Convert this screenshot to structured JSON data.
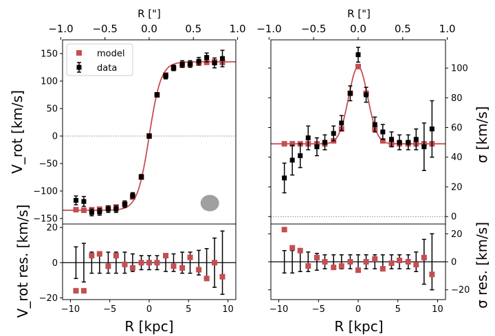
{
  "chart_data": [
    {
      "id": "vrot",
      "type": "scatter",
      "title": "",
      "xlabel": "R [kpc]",
      "ylabel": "V_rot [km/s]",
      "top_xlabel": "R [\"]",
      "xlim": [
        -11,
        11
      ],
      "ylim": [
        -160,
        175
      ],
      "top_xlim": [
        -0.98,
        0.98
      ],
      "xticks": [
        -10,
        -5,
        0,
        5,
        10
      ],
      "yticks": [
        -150,
        -100,
        -50,
        0,
        50,
        100,
        150
      ],
      "top_xticks": [
        -1.0,
        -0.5,
        0.0,
        0.5,
        1.0
      ],
      "top_xtick_labels": [
        "−1.0",
        "−0.5",
        "0.0",
        "0.5",
        "1.0"
      ],
      "legend": {
        "position": "upper-left",
        "entries": [
          "model",
          "data"
        ]
      },
      "zero_line": true,
      "beam_marker": {
        "x": 7.7,
        "y": -122,
        "width_kpc": 2.0,
        "height": 30,
        "color": "#a0a0a0"
      },
      "colors": {
        "model": "#c44e52",
        "data": "#000000"
      },
      "model_curve": {
        "vmax": 135,
        "rscale": 1.5
      },
      "data": {
        "x": [
          -9.3,
          -8.3,
          -7.3,
          -6.3,
          -5.2,
          -4.2,
          -3.1,
          -2.1,
          -1.0,
          0.0,
          1.0,
          2.1,
          3.1,
          4.2,
          5.2,
          6.3,
          7.3,
          8.3,
          9.3
        ],
        "y": [
          -117,
          -119,
          -139,
          -138,
          -133,
          -133,
          -124,
          -108,
          -74,
          0,
          75,
          109,
          124,
          131,
          131,
          136,
          143,
          133,
          141
        ],
        "yerr": [
          8,
          9,
          6,
          6,
          6,
          6,
          6,
          5,
          4,
          4,
          4,
          5,
          5,
          6,
          6,
          7,
          8,
          9,
          15
        ]
      },
      "model": {
        "x": [
          -9.3,
          -8.3,
          -7.3,
          -6.3,
          -5.2,
          -4.2,
          -3.1,
          -2.1,
          -1.0,
          0.0,
          1.0,
          2.1,
          3.1,
          4.2,
          5.2,
          6.3,
          7.3,
          8.3,
          9.3
        ],
        "y": [
          -134,
          -135,
          -134,
          -133,
          -131,
          -129,
          -124,
          -111,
          -75,
          0,
          75,
          111,
          124,
          129,
          131,
          133,
          134,
          135,
          134
        ]
      }
    },
    {
      "id": "sigma",
      "type": "scatter",
      "title": "",
      "xlabel": "R [kpc]",
      "ylabel": "σ [km/s]",
      "top_xlabel": "R [\"]",
      "xlim": [
        -11,
        11
      ],
      "ylim": [
        -5,
        119
      ],
      "top_xlim": [
        -0.98,
        0.98
      ],
      "xticks": [
        -10,
        -5,
        0,
        5,
        10
      ],
      "yticks": [
        0,
        20,
        40,
        60,
        80,
        100
      ],
      "top_xticks": [
        -1.0,
        -0.5,
        0.0,
        0.5,
        1.0
      ],
      "top_xtick_labels": [
        "−1.0",
        "−0.5",
        "0.0",
        "0.5",
        "1.0"
      ],
      "zero_line": true,
      "colors": {
        "model": "#c44e52",
        "data": "#000000"
      },
      "model_curve": {
        "base": 49,
        "peak": 52,
        "width": 1.2
      },
      "data": {
        "x": [
          -9.3,
          -8.3,
          -7.3,
          -6.3,
          -5.2,
          -4.2,
          -3.1,
          -2.1,
          -1.0,
          0.0,
          1.0,
          2.1,
          3.1,
          4.2,
          5.2,
          6.3,
          7.3,
          8.3,
          9.3
        ],
        "y": [
          26,
          38,
          41,
          53,
          47,
          50,
          56,
          63,
          83,
          109,
          82,
          62,
          57,
          52,
          50,
          50,
          52,
          47,
          59
        ],
        "yerr": [
          10,
          10,
          8,
          8,
          6,
          5,
          5,
          5,
          5,
          5,
          5,
          5,
          5,
          5,
          5,
          5,
          7,
          16,
          19
        ]
      },
      "model": {
        "x": [
          -9.3,
          -8.3,
          -7.3,
          -6.3,
          -5.2,
          -4.2,
          -3.1,
          -2.1,
          -1.0,
          0.0,
          1.0,
          2.1,
          3.1,
          4.2,
          5.2,
          6.3,
          7.3,
          8.3,
          9.3
        ],
        "y": [
          49,
          49,
          49,
          49,
          49,
          49,
          51,
          59,
          83,
          101,
          83,
          59,
          51,
          49,
          49,
          49,
          49,
          49,
          49
        ]
      }
    },
    {
      "id": "vrot_res",
      "type": "scatter",
      "xlabel": "R [kpc]",
      "ylabel": "V_rot res. [km/s]",
      "xlim": [
        -11,
        11
      ],
      "ylim": [
        -21,
        22
      ],
      "xticks": [
        -10,
        -5,
        0,
        5,
        10
      ],
      "xtick_labels": [
        "−10",
        "−5",
        "0",
        "5",
        "10"
      ],
      "yticks": [
        -20,
        0,
        20
      ],
      "ytick_labels": [
        "−20",
        "0",
        "20"
      ],
      "zero_line": true,
      "colors": {
        "res": "#c44e52",
        "data": "#000000"
      },
      "x": [
        -9.3,
        -8.3,
        -7.3,
        -6.3,
        -5.2,
        -4.2,
        -3.1,
        -2.1,
        -1.0,
        0.0,
        1.0,
        2.1,
        3.1,
        4.2,
        5.2,
        6.3,
        7.3,
        8.3,
        9.3
      ],
      "residuals": [
        -16,
        -16,
        4,
        5,
        -2,
        4,
        -1,
        -3,
        0,
        0,
        0,
        4,
        -2,
        -3,
        3,
        -4,
        -9,
        0,
        -8
      ],
      "errors": [
        9,
        11,
        6,
        6,
        6,
        6,
        6,
        5,
        4,
        4,
        4,
        5,
        5,
        6,
        6,
        7,
        8,
        14,
        18
      ]
    },
    {
      "id": "sigma_res",
      "type": "scatter",
      "xlabel": "R [kpc]",
      "ylabel": "σ res. [km/s]",
      "xlim": [
        -11,
        11
      ],
      "ylim": [
        -27,
        27
      ],
      "xticks": [
        -10,
        -5,
        0,
        5,
        10
      ],
      "xtick_labels": [
        "−10",
        "−5",
        "0",
        "5",
        "10"
      ],
      "yticks": [
        -20,
        0,
        20
      ],
      "ytick_labels": [
        "−20",
        "0",
        "20"
      ],
      "zero_line": true,
      "colors": {
        "res": "#c44e52",
        "data": "#000000"
      },
      "x": [
        -9.3,
        -8.3,
        -7.3,
        -6.3,
        -5.2,
        -4.2,
        -3.1,
        -2.1,
        -1.0,
        0.0,
        1.0,
        2.1,
        3.1,
        4.2,
        5.2,
        6.3,
        7.3,
        8.3,
        9.3
      ],
      "residuals": [
        23,
        10,
        8,
        -3,
        3,
        0,
        -4,
        -3,
        0,
        -6,
        0,
        2,
        -5,
        -1,
        1,
        0,
        -2,
        3,
        -9
      ],
      "errors": [
        8,
        8,
        7,
        7,
        6,
        5,
        5,
        5,
        5,
        5,
        5,
        5,
        5,
        5,
        5,
        5,
        7,
        16,
        20
      ]
    }
  ]
}
